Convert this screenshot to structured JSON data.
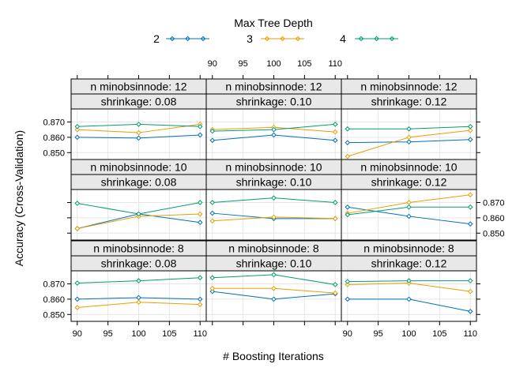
{
  "chart_data": {
    "type": "line",
    "legend": {
      "title": "Max Tree Depth",
      "position": "top",
      "entries": [
        {
          "label": "2",
          "color": "#0072b2"
        },
        {
          "label": "3",
          "color": "#e69f00"
        },
        {
          "label": "4",
          "color": "#009e73"
        }
      ]
    },
    "xlabel": "# Boosting Iterations",
    "ylabel": "Accuracy (Cross-Validation)",
    "x": [
      90,
      100,
      110
    ],
    "xlim": [
      89,
      111
    ],
    "ylim": [
      0.8455,
      0.8785
    ],
    "xticks": [
      90,
      95,
      100,
      105,
      110
    ],
    "yticks": [
      0.85,
      0.86,
      0.87
    ],
    "ytick_labels": [
      "0.850",
      "0.860",
      "0.870"
    ],
    "grid": true,
    "strip_prefixes": {
      "minobs": "n minobsinnode:",
      "shrink": "shrinkage:"
    },
    "panels": [
      {
        "minobs": "12",
        "shrinkage": "0.08",
        "series": [
          {
            "depth": "2",
            "values": [
              0.86,
              0.8595,
              0.8615
            ]
          },
          {
            "depth": "3",
            "values": [
              0.865,
              0.863,
              0.8685
            ]
          },
          {
            "depth": "4",
            "values": [
              0.867,
              0.8685,
              0.867
            ]
          }
        ]
      },
      {
        "minobs": "12",
        "shrinkage": "0.10",
        "series": [
          {
            "depth": "2",
            "values": [
              0.858,
              0.8615,
              0.858
            ]
          },
          {
            "depth": "3",
            "values": [
              0.865,
              0.8665,
              0.8635
            ]
          },
          {
            "depth": "4",
            "values": [
              0.864,
              0.865,
              0.8685
            ]
          }
        ]
      },
      {
        "minobs": "12",
        "shrinkage": "0.12",
        "series": [
          {
            "depth": "2",
            "values": [
              0.8565,
              0.857,
              0.8585
            ]
          },
          {
            "depth": "3",
            "values": [
              0.8475,
              0.86,
              0.8645
            ]
          },
          {
            "depth": "4",
            "values": [
              0.8655,
              0.8655,
              0.867
            ]
          }
        ]
      },
      {
        "minobs": "10",
        "shrinkage": "0.08",
        "series": [
          {
            "depth": "2",
            "values": [
              0.853,
              0.8625,
              0.857
            ]
          },
          {
            "depth": "3",
            "values": [
              0.853,
              0.861,
              0.8625
            ]
          },
          {
            "depth": "4",
            "values": [
              0.8695,
              0.8625,
              0.87
            ]
          }
        ]
      },
      {
        "minobs": "10",
        "shrinkage": "0.10",
        "series": [
          {
            "depth": "2",
            "values": [
              0.863,
              0.8595,
              0.8595
            ]
          },
          {
            "depth": "3",
            "values": [
              0.858,
              0.8605,
              0.8595
            ]
          },
          {
            "depth": "4",
            "values": [
              0.87,
              0.873,
              0.87
            ]
          }
        ]
      },
      {
        "minobs": "10",
        "shrinkage": "0.12",
        "series": [
          {
            "depth": "2",
            "values": [
              0.867,
              0.861,
              0.856
            ]
          },
          {
            "depth": "3",
            "values": [
              0.863,
              0.87,
              0.875
            ]
          },
          {
            "depth": "4",
            "values": [
              0.862,
              0.867,
              0.867
            ]
          }
        ]
      },
      {
        "minobs": "8",
        "shrinkage": "0.08",
        "series": [
          {
            "depth": "2",
            "values": [
              0.86,
              0.861,
              0.86
            ]
          },
          {
            "depth": "3",
            "values": [
              0.8545,
              0.858,
              0.8565
            ]
          },
          {
            "depth": "4",
            "values": [
              0.8705,
              0.872,
              0.874
            ]
          }
        ]
      },
      {
        "minobs": "8",
        "shrinkage": "0.10",
        "series": [
          {
            "depth": "2",
            "values": [
              0.865,
              0.86,
              0.8635
            ]
          },
          {
            "depth": "3",
            "values": [
              0.867,
              0.867,
              0.864
            ]
          },
          {
            "depth": "4",
            "values": [
              0.874,
              0.876,
              0.8695
            ]
          }
        ]
      },
      {
        "minobs": "8",
        "shrinkage": "0.12",
        "series": [
          {
            "depth": "2",
            "values": [
              0.86,
              0.86,
              0.852
            ]
          },
          {
            "depth": "3",
            "values": [
              0.8695,
              0.8705,
              0.865
            ]
          },
          {
            "depth": "4",
            "values": [
              0.8715,
              0.872,
              0.872
            ]
          }
        ]
      }
    ]
  }
}
